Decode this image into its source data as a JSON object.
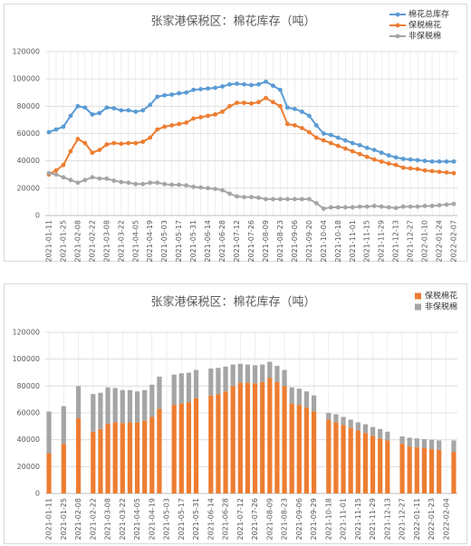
{
  "chart_data": [
    {
      "type": "line",
      "title": "张家港保税区：棉花库存（吨）",
      "categories": [
        "2021-01-11",
        null,
        "2021-01-25",
        null,
        "2021-02-08",
        null,
        "2021-02-22",
        null,
        "2021-03-08",
        null,
        "2021-03-22",
        null,
        "2021-04-05",
        null,
        "2021-04-19",
        null,
        "2021-05-03",
        null,
        "2021-05-17",
        null,
        "2021-05-31",
        null,
        "2021-06-14",
        null,
        "2021-06-28",
        null,
        "2021-07-12",
        null,
        "2021-07-26",
        null,
        "2021-08-09",
        null,
        "2021-08-23",
        null,
        "2021-09-06",
        null,
        "2021-09-20",
        null,
        "2021-10-04",
        null,
        "2021-10-18",
        null,
        "2021-11-01",
        null,
        "2021-11-15",
        null,
        "2021-11-29",
        null,
        "2021-12-13",
        null,
        "2021-12-27",
        null,
        "2022-01-10",
        null,
        "2022-01-24",
        null,
        "2022-02-07"
      ],
      "series": [
        {
          "name": "棉花总库存",
          "color": "#5b9bd5",
          "values": [
            61000,
            63000,
            65000,
            73000,
            80000,
            79000,
            74000,
            75000,
            79000,
            78500,
            77000,
            77000,
            76000,
            77000,
            81000,
            87000,
            88000,
            88500,
            89500,
            90000,
            92000,
            92500,
            93000,
            93500,
            94500,
            96000,
            96500,
            96000,
            95500,
            96000,
            98000,
            95000,
            92000,
            79000,
            78000,
            76000,
            73000,
            66000,
            60000,
            59000,
            57000,
            55000,
            53000,
            51500,
            49500,
            48000,
            46000,
            44000,
            42500,
            41500,
            41000,
            40500,
            40000,
            39500,
            39500,
            39500,
            39500
          ]
        },
        {
          "name": "保税棉花",
          "color": "#ed7d31",
          "values": [
            30000,
            33000,
            37000,
            47000,
            56000,
            53000,
            46000,
            48000,
            52000,
            53000,
            52500,
            53000,
            53000,
            54000,
            57000,
            63000,
            65000,
            66000,
            67000,
            68000,
            71000,
            72000,
            73000,
            74000,
            76000,
            80000,
            82500,
            82500,
            82000,
            83000,
            86000,
            83000,
            80000,
            67000,
            66000,
            64000,
            61000,
            57000,
            55000,
            53000,
            51000,
            49000,
            47000,
            45000,
            43000,
            41000,
            39500,
            38000,
            37000,
            35000,
            34500,
            34000,
            33000,
            32500,
            32000,
            31500,
            31000
          ]
        },
        {
          "name": "非保税棉",
          "color": "#a5a5a5",
          "values": [
            31000,
            30000,
            28000,
            26000,
            24000,
            26000,
            28000,
            27000,
            27000,
            25500,
            24500,
            24000,
            23000,
            23000,
            24000,
            24000,
            23000,
            22500,
            22500,
            22000,
            21000,
            20500,
            20000,
            19500,
            18500,
            16000,
            14000,
            13500,
            13500,
            13000,
            12000,
            12000,
            12000,
            12000,
            12000,
            12000,
            12000,
            9000,
            5000,
            6000,
            6000,
            6000,
            6000,
            6500,
            6500,
            7000,
            6500,
            6000,
            5500,
            6500,
            6500,
            6500,
            7000,
            7000,
            7500,
            8000,
            8500
          ]
        }
      ],
      "ylim": [
        0,
        120000
      ],
      "yticks": [
        0,
        20000,
        40000,
        60000,
        80000,
        100000,
        120000
      ],
      "grid": true,
      "legend": "top-right"
    },
    {
      "type": "bar",
      "stacked": true,
      "title": "张家港保税区：棉花库存（吨）",
      "categories": [
        "2021-01-11",
        null,
        "2021-01-25",
        null,
        "2021-02-08",
        null,
        "2021-02-22",
        null,
        "2021-03-08",
        null,
        "2021-03-22",
        null,
        "2021-04-05",
        null,
        "2021-04-19",
        null,
        "2021-05-03",
        null,
        "2021-05-17",
        null,
        "2021-05-31",
        null,
        "2021-06-14",
        null,
        "2021-06-28",
        null,
        "2021-07-12",
        null,
        "2021-07-26",
        null,
        "2021-08-09",
        null,
        "2021-08-23",
        null,
        "2021-09-06",
        null,
        "2021-09-29",
        null,
        "2021-10-18",
        null,
        "2021-11-01",
        null,
        "2021-11-15",
        null,
        "2021-11-29",
        null,
        "2021-12-13",
        null,
        "2021-12-27",
        null,
        "2022-01-11",
        null,
        "2022-01-23",
        null,
        "2022-02-04",
        null
      ],
      "series": [
        {
          "name": "保税棉花",
          "color": "#ed7d31",
          "values": [
            30000,
            null,
            37000,
            null,
            56000,
            null,
            46000,
            48000,
            52000,
            53000,
            52500,
            53000,
            53000,
            54000,
            57000,
            63000,
            null,
            66000,
            67000,
            68000,
            71000,
            null,
            73000,
            74000,
            76000,
            80000,
            82500,
            82500,
            82000,
            83000,
            86000,
            83000,
            80000,
            67000,
            66000,
            64000,
            61000,
            null,
            55000,
            53000,
            51000,
            49000,
            47000,
            45000,
            43000,
            41000,
            39500,
            null,
            37000,
            35000,
            34500,
            34000,
            33000,
            32500,
            null,
            31000
          ]
        },
        {
          "name": "非保税棉",
          "color": "#a5a5a5",
          "values": [
            31000,
            null,
            28000,
            null,
            24000,
            null,
            28000,
            27000,
            27000,
            25500,
            24500,
            24000,
            23000,
            23000,
            24000,
            24000,
            null,
            22500,
            22500,
            22000,
            21000,
            null,
            20000,
            19500,
            18500,
            16000,
            14000,
            13500,
            13500,
            13000,
            12000,
            12000,
            12000,
            12000,
            12000,
            12000,
            12000,
            null,
            5000,
            6000,
            6000,
            6000,
            6000,
            6500,
            6500,
            7000,
            6500,
            null,
            5500,
            6500,
            6500,
            6500,
            7000,
            7000,
            null,
            8500
          ]
        }
      ],
      "ylim": [
        0,
        120000
      ],
      "yticks": [
        0,
        20000,
        40000,
        60000,
        80000,
        100000,
        120000
      ],
      "grid": true,
      "legend": "top-right"
    }
  ]
}
